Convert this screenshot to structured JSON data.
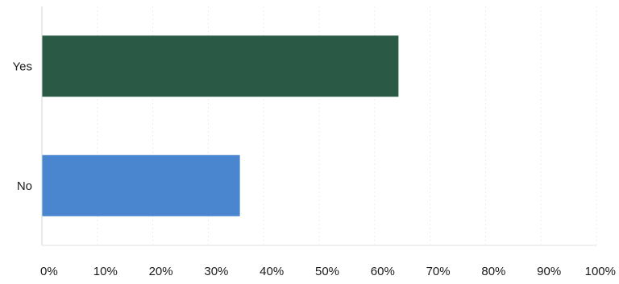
{
  "chart_data": {
    "type": "bar",
    "orientation": "horizontal",
    "categories": [
      "Yes",
      "No"
    ],
    "values": [
      64.3,
      35.7
    ],
    "colors": [
      "#2a5a45",
      "#4a86d0"
    ],
    "xlim": [
      0,
      100
    ],
    "x_ticks": [
      0,
      10,
      20,
      30,
      40,
      50,
      60,
      70,
      80,
      90,
      100
    ],
    "x_tick_labels": [
      "0%",
      "10%",
      "20%",
      "30%",
      "40%",
      "50%",
      "60%",
      "70%",
      "80%",
      "90%",
      "100%"
    ],
    "grid": true,
    "title": "",
    "xlabel": "",
    "ylabel": ""
  }
}
